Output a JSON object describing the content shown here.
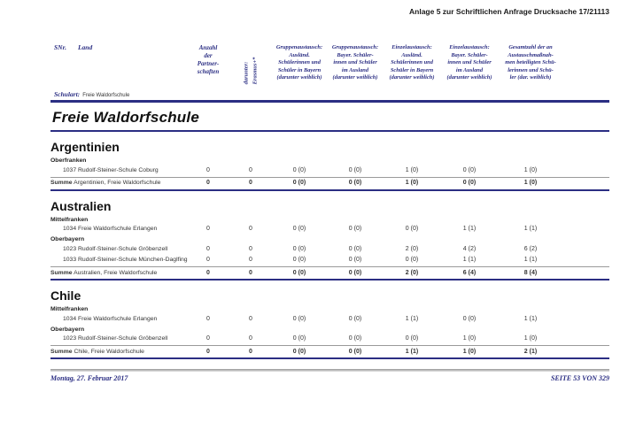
{
  "document": {
    "header_right": "Anlage 5 zur Schriftlichen Anfrage Drucksache 17/21113",
    "footer": {
      "date": "Montag, 27. Februar 2017",
      "page": "SEITE 53 VON 329"
    },
    "colors": {
      "accent_navy": "#2b2e83",
      "body_text": "#333333"
    }
  },
  "table_header": {
    "snr": "SNr.",
    "land": "Land",
    "schulart_label": "Schulart:",
    "schulart_value": "Freie Waldorfschule",
    "partnerschaften": "Anzahl\nder\nPartner-\nschaften",
    "erasmus_rotated": "darunter:\nErasmus+*",
    "exchange_columns": [
      "Gruppenaustausch:\nAusländ.\nSchülerinnen und\nSchüler in Bayern\n(darunter weiblich)",
      "Gruppenaustausch:\nBayer. Schüler-\ninnen und Schüler\nim Ausland\n(darunter weiblich)",
      "Einzelaustausch:\nAusländ.\nSchülerinnen und\nSchüler in Bayern\n(darunter weiblich)",
      "Einzelaustausch:\nBayer. Schüler-\ninnen und Schüler\nim Ausland\n(darunter weiblich)",
      "Gesamtzahl der an\nAustauschmaßnah-\nmen beteiligten Schü-\nlerinnen und Schü-\nler (dar. weiblich)"
    ]
  },
  "title": "Freie Waldorfschule",
  "sections": [
    {
      "country": "Argentinien",
      "groups": [
        {
          "region": "Oberfranken",
          "rows": [
            {
              "name": "1037 Rudolf-Steiner-Schule Coburg",
              "values": [
                "0",
                "0",
                "0 (0)",
                "0 (0)",
                "1 (0)",
                "0 (0)",
                "1 (0)"
              ]
            }
          ]
        }
      ],
      "sum": {
        "bold": "Summe",
        "rest": " Argentinien, Freie Waldorfschule",
        "values": [
          "0",
          "0",
          "0 (0)",
          "0 (0)",
          "1 (0)",
          "0 (0)",
          "1 (0)"
        ]
      }
    },
    {
      "country": "Australien",
      "groups": [
        {
          "region": "Mittelfranken",
          "rows": [
            {
              "name": "1034 Freie Waldorfschule Erlangen",
              "values": [
                "0",
                "0",
                "0 (0)",
                "0 (0)",
                "0 (0)",
                "1 (1)",
                "1 (1)"
              ]
            }
          ]
        },
        {
          "region": "Oberbayern",
          "rows": [
            {
              "name": "1023 Rudolf-Steiner-Schule Gröbenzell",
              "values": [
                "0",
                "0",
                "0 (0)",
                "0 (0)",
                "2 (0)",
                "4 (2)",
                "6 (2)"
              ]
            },
            {
              "name": "1033 Rudolf-Steiner-Schule München-Daglfing",
              "values": [
                "0",
                "0",
                "0 (0)",
                "0 (0)",
                "0 (0)",
                "1 (1)",
                "1 (1)"
              ]
            }
          ]
        }
      ],
      "sum": {
        "bold": "Summe",
        "rest": " Australien, Freie Waldorfschule",
        "values": [
          "0",
          "0",
          "0 (0)",
          "0 (0)",
          "2 (0)",
          "6 (4)",
          "8 (4)"
        ]
      }
    },
    {
      "country": "Chile",
      "groups": [
        {
          "region": "Mittelfranken",
          "rows": [
            {
              "name": "1034 Freie Waldorfschule Erlangen",
              "values": [
                "0",
                "0",
                "0 (0)",
                "0 (0)",
                "1 (1)",
                "0 (0)",
                "1 (1)"
              ]
            }
          ]
        },
        {
          "region": "Oberbayern",
          "rows": [
            {
              "name": "1023 Rudolf-Steiner-Schule Gröbenzell",
              "values": [
                "0",
                "0",
                "0 (0)",
                "0 (0)",
                "0 (0)",
                "1 (0)",
                "1 (0)"
              ]
            }
          ]
        }
      ],
      "sum": {
        "bold": "Summe",
        "rest": " Chile, Freie Waldorfschule",
        "values": [
          "0",
          "0",
          "0 (0)",
          "0 (0)",
          "1 (1)",
          "1 (0)",
          "2 (1)"
        ]
      }
    }
  ]
}
